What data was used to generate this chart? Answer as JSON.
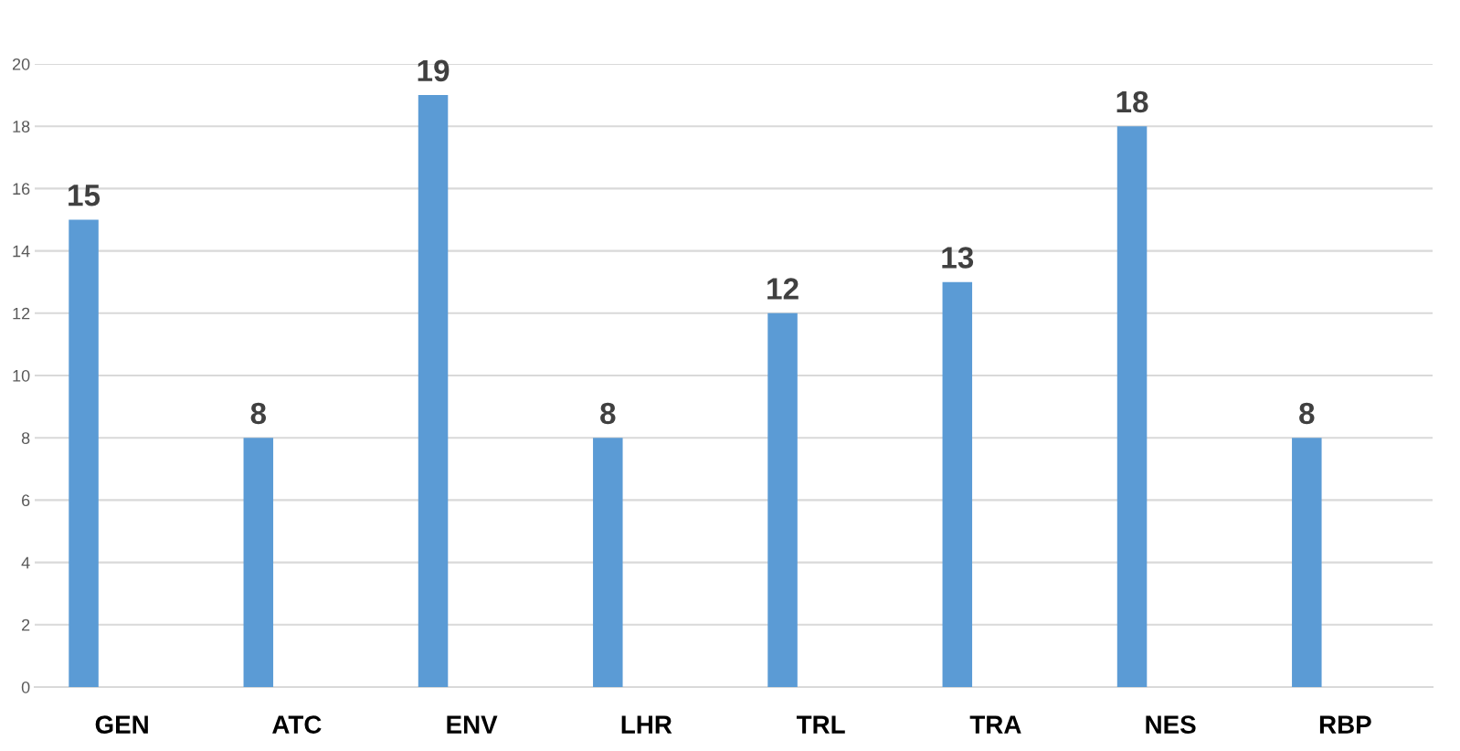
{
  "chart_data": {
    "type": "bar",
    "categories": [
      "GEN",
      "ATC",
      "ENV",
      "LHR",
      "TRL",
      "TRA",
      "NES",
      "RBP"
    ],
    "values": [
      15,
      8,
      19,
      8,
      12,
      13,
      18,
      8
    ],
    "color": "#5b9bd5",
    "ylim": [
      0,
      20
    ],
    "yticks": [
      0,
      2,
      4,
      6,
      8,
      10,
      12,
      14,
      16,
      18,
      20
    ],
    "grid": "y",
    "data_labels": true
  }
}
